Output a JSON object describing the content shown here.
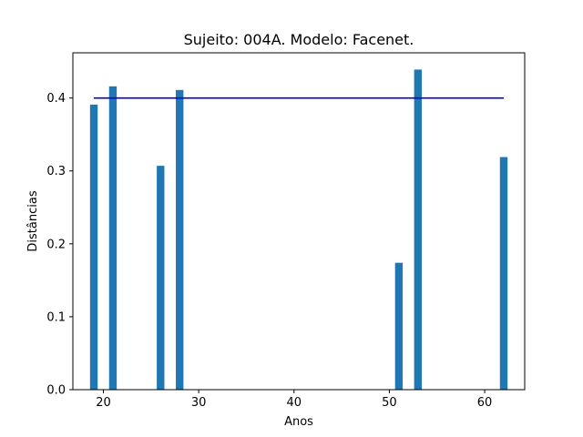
{
  "chart_data": {
    "type": "bar",
    "title": "Sujeito: 004A. Modelo: Facenet.",
    "xlabel": "Anos",
    "ylabel": "Distâncias",
    "xlim": [
      16.8,
      64.2
    ],
    "ylim": [
      0,
      0.462
    ],
    "xticks": [
      20,
      30,
      40,
      50,
      60
    ],
    "yticks": [
      0.0,
      0.1,
      0.2,
      0.3,
      0.4
    ],
    "ytick_labels": [
      "0.0",
      "0.1",
      "0.2",
      "0.3",
      "0.4"
    ],
    "bar_color": "#1f77b4",
    "bar_width_years": 0.8,
    "x": [
      19,
      21,
      26,
      28,
      51,
      53,
      62
    ],
    "values": [
      0.391,
      0.416,
      0.307,
      0.411,
      0.174,
      0.439,
      0.319
    ],
    "threshold_line": {
      "y": 0.4,
      "x_start": 19,
      "x_end": 62,
      "color": "#0000cc"
    },
    "grid": false,
    "legend": "none"
  }
}
